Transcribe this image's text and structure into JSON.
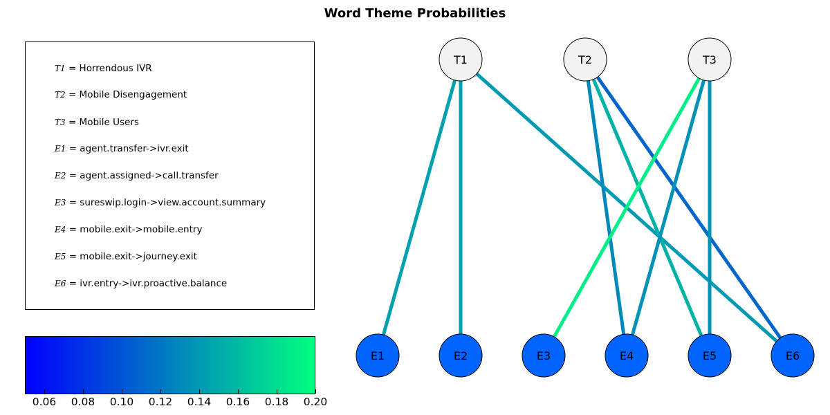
{
  "title": "Word Theme Probabilities",
  "legend": [
    {
      "symbol": "T1",
      "text": "= Horrendous IVR"
    },
    {
      "symbol": "T2",
      "text": "= Mobile Disengagement"
    },
    {
      "symbol": "T3",
      "text": "= Mobile Users"
    },
    {
      "symbol": "E1",
      "text": "= agent.transfer->ivr.exit"
    },
    {
      "symbol": "E2",
      "text": "= agent.assigned->call.transfer"
    },
    {
      "symbol": "E3",
      "text": "= sureswip.login->view.account.summary"
    },
    {
      "symbol": "E4",
      "text": "= mobile.exit->mobile.entry"
    },
    {
      "symbol": "E5",
      "text": "= mobile.exit->journey.exit"
    },
    {
      "symbol": "E6",
      "text": "= ivr.entry->ivr.proactive.balance"
    }
  ],
  "colorbar": {
    "min": 0.05,
    "max": 0.2,
    "ticks": [
      "0.06",
      "0.08",
      "0.10",
      "0.12",
      "0.14",
      "0.16",
      "0.18",
      "0.20"
    ],
    "color_low": "#0000ff",
    "color_high": "#00ff80"
  },
  "graph": {
    "topic_nodes": [
      {
        "id": "T1",
        "label": "T1"
      },
      {
        "id": "T2",
        "label": "T2"
      },
      {
        "id": "T3",
        "label": "T3"
      }
    ],
    "event_nodes": [
      {
        "id": "E1",
        "label": "E1"
      },
      {
        "id": "E2",
        "label": "E2"
      },
      {
        "id": "E3",
        "label": "E3"
      },
      {
        "id": "E4",
        "label": "E4"
      },
      {
        "id": "E5",
        "label": "E5"
      },
      {
        "id": "E6",
        "label": "E6"
      }
    ],
    "topic_node_color": "#f2f2f2",
    "event_node_color": "#0064ff",
    "edges": [
      {
        "from": "T1",
        "to": "E1",
        "weight": 0.145
      },
      {
        "from": "T1",
        "to": "E2",
        "weight": 0.145
      },
      {
        "from": "T1",
        "to": "E6",
        "weight": 0.14
      },
      {
        "from": "T2",
        "to": "E4",
        "weight": 0.13
      },
      {
        "from": "T2",
        "to": "E5",
        "weight": 0.155
      },
      {
        "from": "T2",
        "to": "E6",
        "weight": 0.11
      },
      {
        "from": "T3",
        "to": "E3",
        "weight": 0.19
      },
      {
        "from": "T3",
        "to": "E4",
        "weight": 0.135
      },
      {
        "from": "T3",
        "to": "E5",
        "weight": 0.135
      }
    ]
  }
}
